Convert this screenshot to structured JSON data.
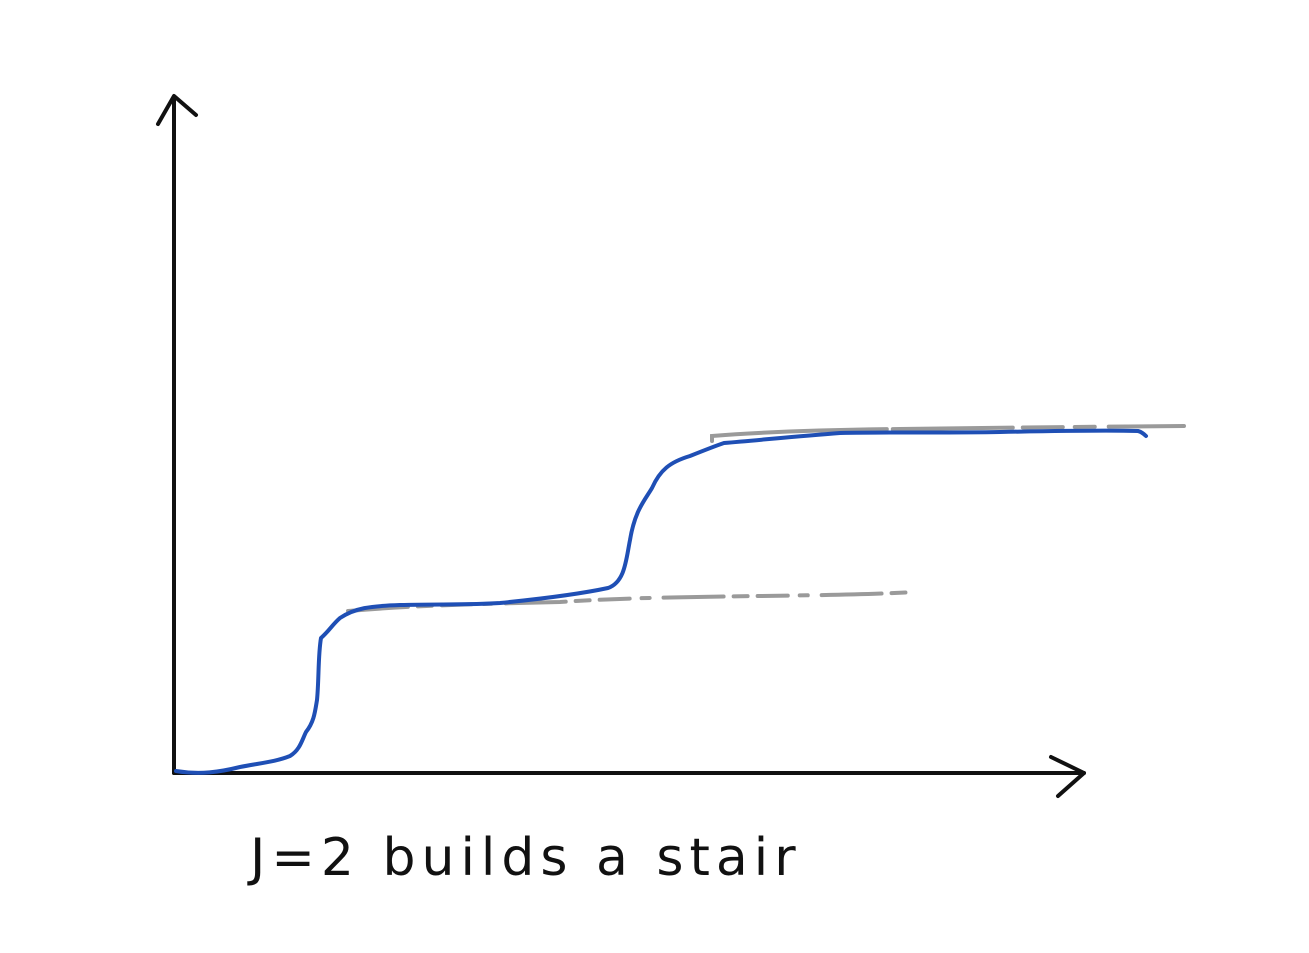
{
  "caption": "J=2 builds a stair",
  "colors": {
    "axes": "#111111",
    "curve": "#1f4fb5",
    "guide": "#9a9a9a",
    "background": "#ffffff"
  },
  "axes": {
    "x_arrow": true,
    "y_arrow": true
  },
  "curve": {
    "description_kind": "staircase",
    "steps": 2
  }
}
